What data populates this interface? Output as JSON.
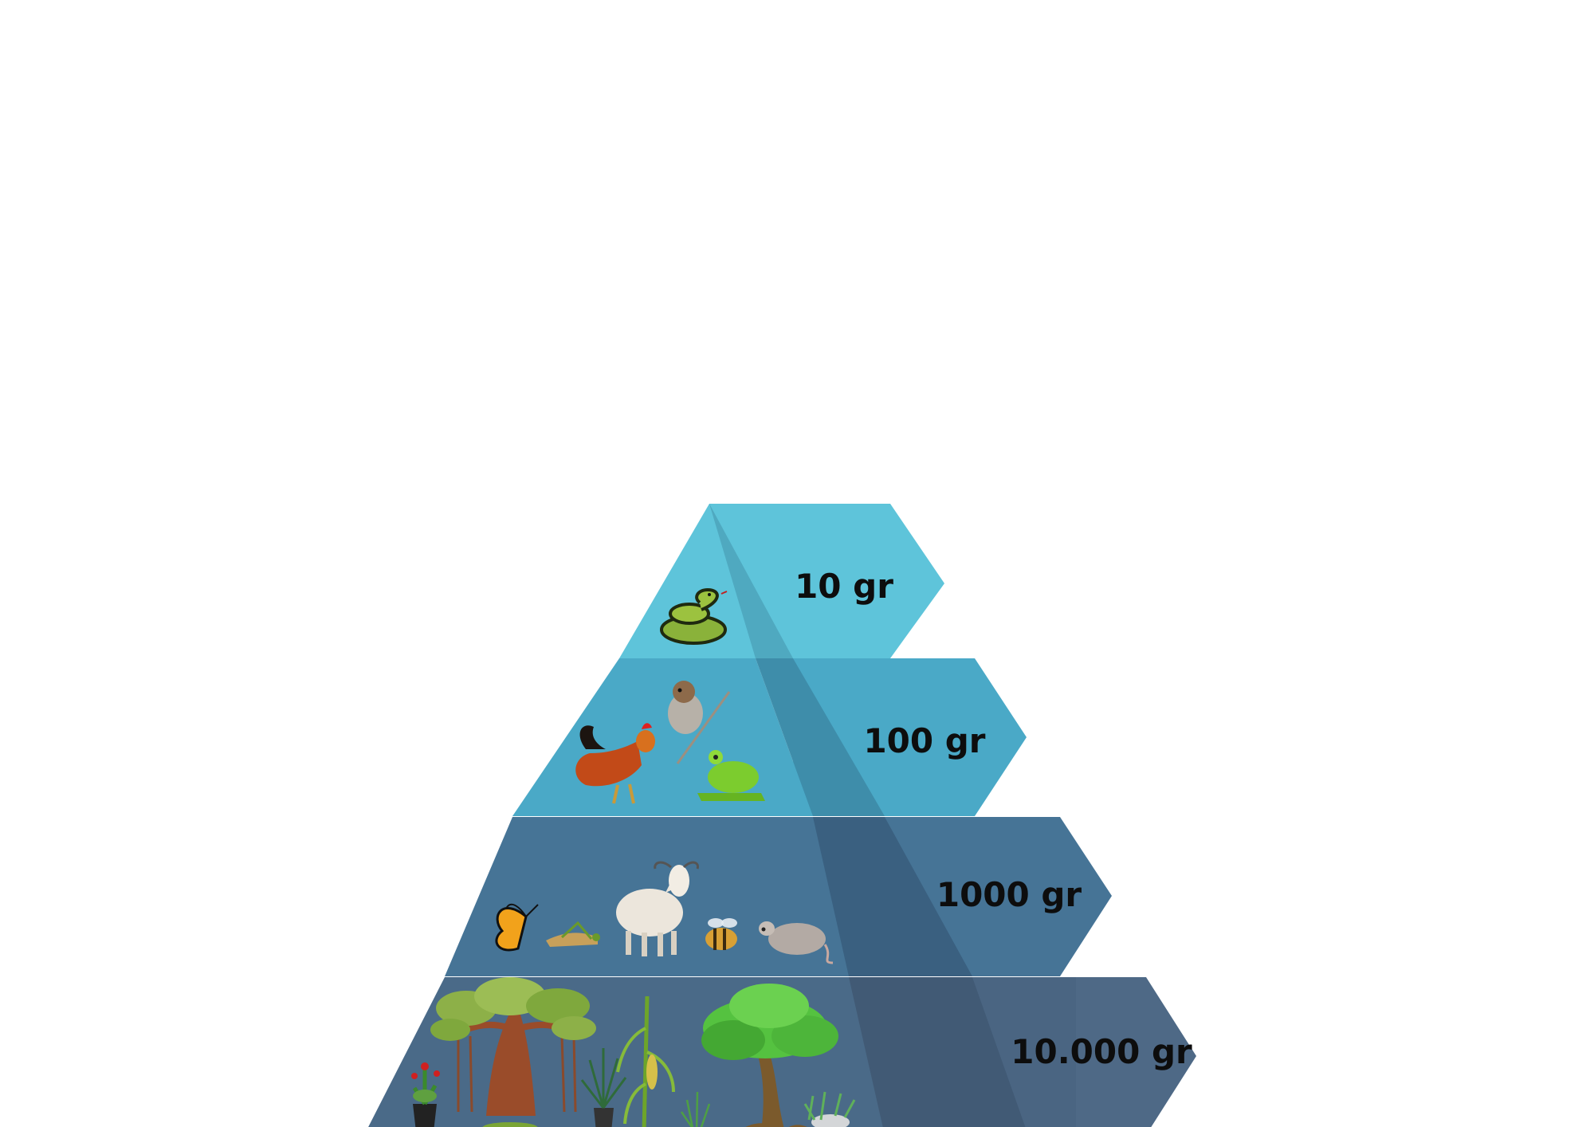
{
  "diagram": {
    "type": "biomass-pyramid",
    "levels": [
      {
        "id": "top",
        "label": "10 gr",
        "organisms": [
          "snake"
        ],
        "color_face": "#5ec4da",
        "color_arrow": "#5ec4da",
        "color_shade": "#4fa9c0"
      },
      {
        "id": "upper-middle",
        "label": "100 gr",
        "organisms": [
          "rooster",
          "sparrow",
          "frog"
        ],
        "color_face": "#4aa9c7",
        "color_arrow": "#4aa9c7",
        "color_shade": "#3e8daa"
      },
      {
        "id": "lower-middle",
        "label": "1000 gr",
        "organisms": [
          "butterfly",
          "grasshopper",
          "goat",
          "bee",
          "mouse"
        ],
        "color_face": "#467496",
        "color_arrow": "#467496",
        "color_shade": "#3a6080"
      },
      {
        "id": "base",
        "label": "10.000 gr",
        "organisms": [
          "banyan-tree",
          "potted-flower",
          "potted-grass",
          "corn",
          "reeds",
          "green-tree",
          "grass-rock"
        ],
        "color_face": "#4a6a88",
        "color_arrow": "#4e6986",
        "color_shade": "#415a75"
      }
    ]
  }
}
